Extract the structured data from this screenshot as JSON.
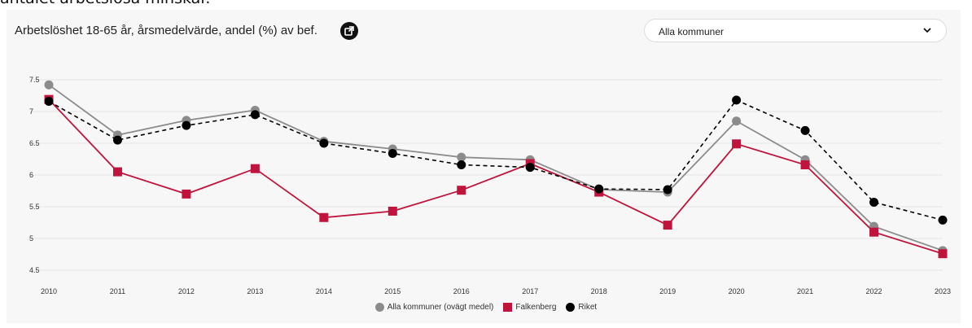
{
  "page_caption_fragment": "antalet arbetslösa minskar.",
  "header": {
    "title": "Arbetslöshet 18-65 år, årsmedelvärde, andel (%) av bef.",
    "external_link_icon": "external-link-icon"
  },
  "municipality_select": {
    "value": "Alla kommuner",
    "icon": "chevron-down-icon"
  },
  "chart_data": {
    "type": "line",
    "title": "Arbetslöshet 18-65 år, årsmedelvärde, andel (%) av bef.",
    "xlabel": "",
    "ylabel": "",
    "x": [
      2010,
      2011,
      2012,
      2013,
      2014,
      2015,
      2016,
      2017,
      2018,
      2019,
      2020,
      2021,
      2022,
      2023
    ],
    "ylim": [
      4.5,
      7.5
    ],
    "yticks": [
      4.5,
      5,
      5.5,
      6,
      6.5,
      7,
      7.5
    ],
    "ytick_labels": [
      "4.5",
      "5",
      "5.5",
      "6",
      "6.5",
      "7",
      "7.5"
    ],
    "grid": true,
    "legend_position": "bottom-center",
    "series": [
      {
        "name": "Alla kommuner (ovägt medel)",
        "color": "#8c8c8c",
        "marker": "circle",
        "line_style": "solid",
        "values": [
          7.42,
          6.63,
          6.86,
          7.02,
          6.53,
          6.41,
          6.28,
          6.24,
          5.77,
          5.73,
          6.85,
          6.24,
          5.19,
          4.81
        ]
      },
      {
        "name": "Falkenberg",
        "color": "#c0143c",
        "marker": "square",
        "line_style": "solid",
        "values": [
          7.19,
          6.05,
          5.7,
          6.1,
          5.33,
          5.43,
          5.76,
          6.18,
          5.73,
          5.21,
          6.49,
          6.16,
          5.1,
          4.76
        ]
      },
      {
        "name": "Riket",
        "color": "#000000",
        "marker": "circle",
        "line_style": "dashed",
        "values": [
          7.16,
          6.55,
          6.78,
          6.95,
          6.5,
          6.34,
          6.16,
          6.12,
          5.78,
          5.77,
          7.18,
          6.7,
          5.57,
          5.29
        ]
      }
    ]
  }
}
